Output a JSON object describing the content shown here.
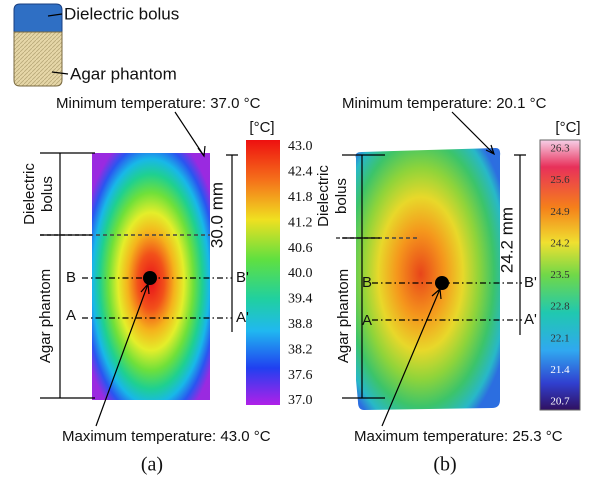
{
  "legend": {
    "bolus": "Dielectric bolus",
    "phantom": "Agar phantom"
  },
  "panels": [
    {
      "caption": "(a)",
      "min_label": "Minimum temperature: 37.0 °C",
      "max_label": "Maximum temperature: 43.0 °C",
      "unit": "[°C]",
      "colorbar_ticks": [
        "43.0",
        "42.4",
        "41.8",
        "41.2",
        "40.6",
        "40.0",
        "39.4",
        "38.8",
        "38.2",
        "37.6",
        "37.0"
      ],
      "bolus_label": [
        "Dielectric",
        "bolus"
      ],
      "phantom_label": "Agar phantom",
      "depth": "30.0 mm",
      "lines": {
        "b": "B",
        "b_end": "B'",
        "a": "A",
        "a_end": "A'"
      }
    },
    {
      "caption": "(b)",
      "min_label": "Minimum temperature: 20.1 °C",
      "max_label": "Maximum temperature: 25.3 °C",
      "unit": "[°C]",
      "colorbar_ticks": [
        "26.3",
        "25.6",
        "24.9",
        "24.2",
        "23.5",
        "22.8",
        "22.1",
        "21.4",
        "20.7"
      ],
      "bolus_label": [
        "Dielectric",
        "bolus"
      ],
      "phantom_label": "Agar phantom",
      "depth": "24.2 mm",
      "lines": {
        "b": "B",
        "b_end": "B'",
        "a": "A",
        "a_end": "A'"
      }
    }
  ]
}
